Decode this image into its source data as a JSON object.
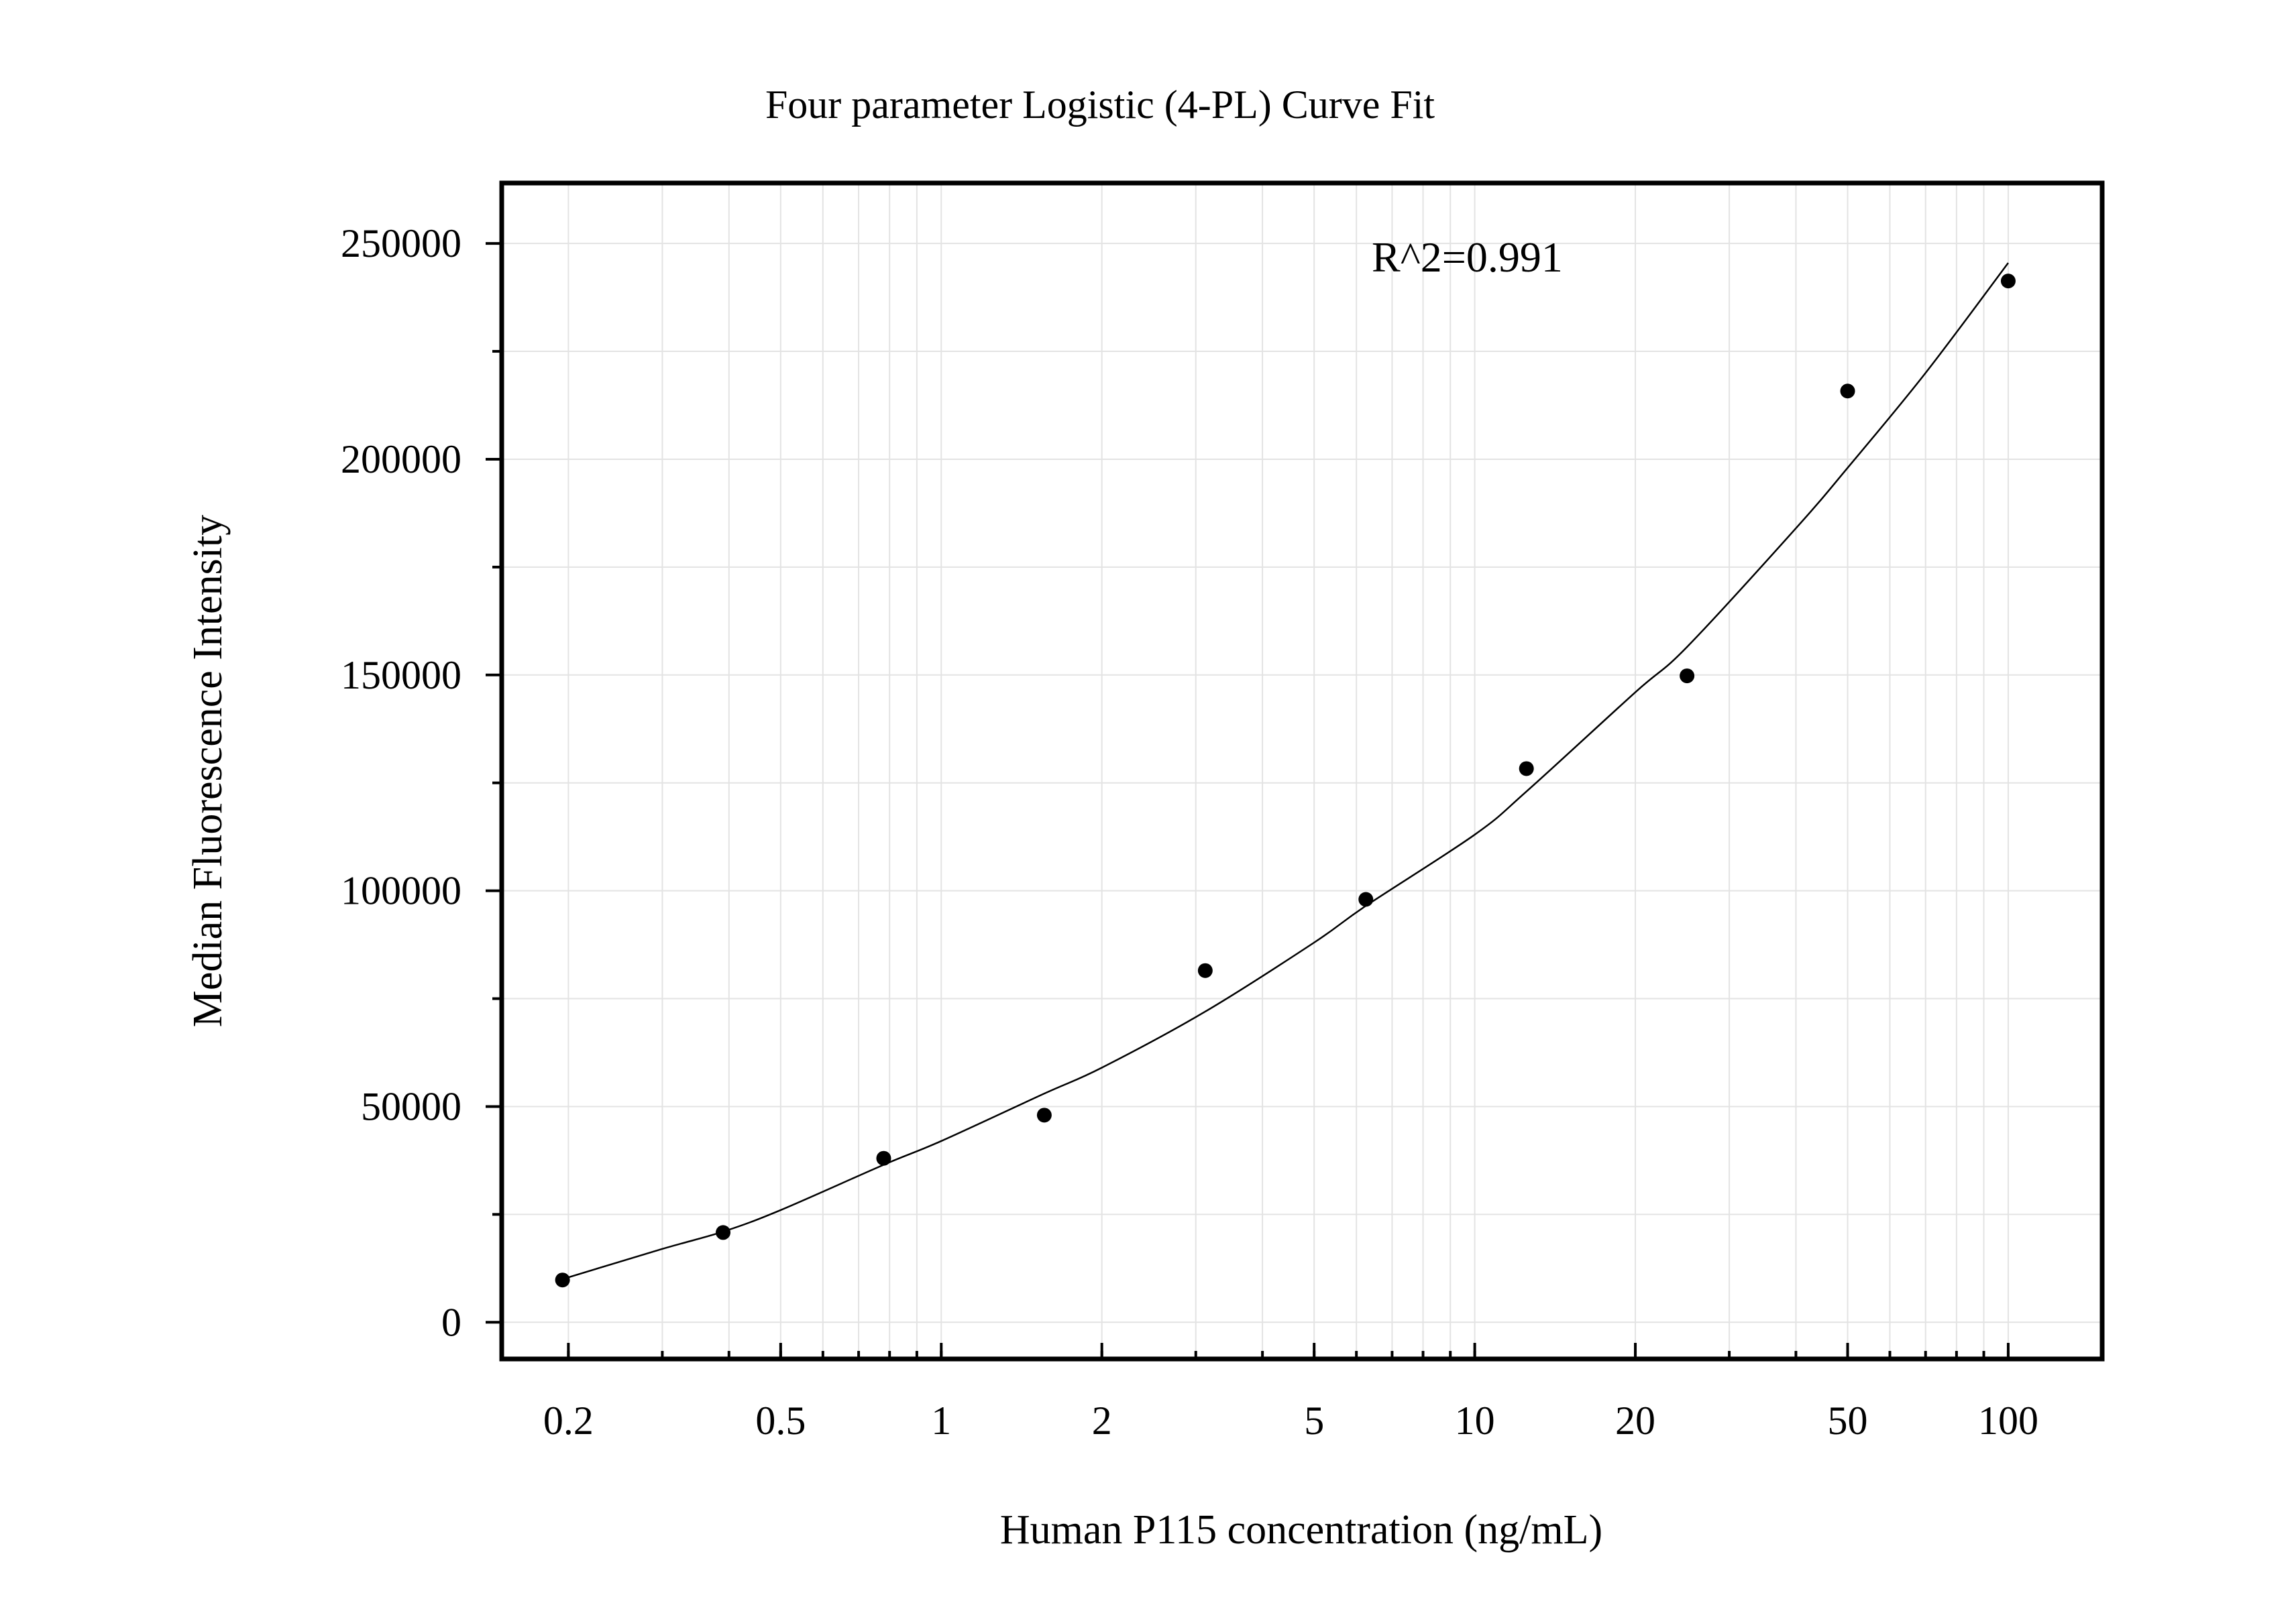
{
  "chart_data": {
    "type": "scatter",
    "title": "Four parameter Logistic (4-PL) Curve Fit",
    "xlabel": "Human P115 concentration (ng/mL)",
    "ylabel": "Median Fluorescence Intensity",
    "x_scale": "log",
    "xlim": [
      0.15,
      150
    ],
    "ylim": [
      -8500,
      264000
    ],
    "x_ticks": [
      0.2,
      0.5,
      1,
      2,
      5,
      10,
      20,
      50,
      100
    ],
    "x_tick_labels": [
      "0.2",
      "0.5",
      "1",
      "2",
      "5",
      "10",
      "20",
      "50",
      "100"
    ],
    "y_ticks": [
      0,
      50000,
      100000,
      150000,
      200000,
      250000
    ],
    "y_tick_labels": [
      "0",
      "50000",
      "100000",
      "150000",
      "200000",
      "250000"
    ],
    "grid": true,
    "annotation": "R^2=0.991",
    "series": [
      {
        "type": "scatter",
        "x": [
          0.195,
          0.39,
          0.78,
          1.56,
          3.125,
          6.25,
          12.5,
          25,
          50,
          100
        ],
        "y": [
          9800,
          20800,
          38000,
          48000,
          81500,
          98000,
          128300,
          149800,
          215800,
          241300
        ]
      },
      {
        "type": "line",
        "x": [
          0.195,
          0.3,
          0.39,
          0.5,
          0.78,
          1,
          1.56,
          2,
          3.125,
          5,
          6.25,
          10,
          12.5,
          20,
          25,
          40,
          50,
          70,
          100
        ],
        "y": [
          10000,
          17000,
          21000,
          26000,
          36500,
          42000,
          53000,
          59000,
          72000,
          88000,
          96500,
          113000,
          123000,
          146000,
          156500,
          184000,
          198000,
          220000,
          245500
        ]
      }
    ]
  }
}
